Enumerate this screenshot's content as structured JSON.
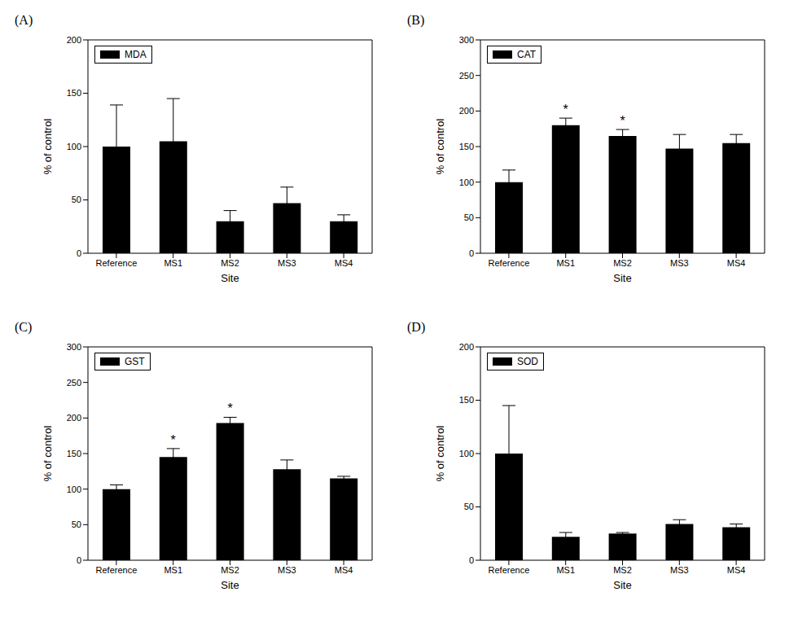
{
  "chart_data": [
    {
      "type": "bar",
      "panel": "(A)",
      "categories": [
        "Reference",
        "MS1",
        "MS2",
        "MS3",
        "MS4"
      ],
      "series": [
        {
          "name": "MDA",
          "color": "#000000",
          "values": [
            100,
            105,
            30,
            47,
            30
          ],
          "errors": [
            39,
            40,
            10,
            15,
            6
          ]
        }
      ],
      "x_label": "Site",
      "y_label": "% of control",
      "ylim": [
        0,
        200
      ],
      "yticks": [
        0,
        50,
        100,
        150,
        200
      ],
      "legend": "upper left"
    },
    {
      "type": "bar",
      "panel": "(B)",
      "categories": [
        "Reference",
        "MS1",
        "MS2",
        "MS3",
        "MS4"
      ],
      "series": [
        {
          "name": "CAT",
          "color": "#000000",
          "values": [
            100,
            180,
            165,
            147,
            155
          ],
          "errors": [
            17,
            10,
            9,
            20,
            12
          ]
        }
      ],
      "annotations": [
        null,
        "*",
        "*",
        null,
        null
      ],
      "x_label": "Site",
      "y_label": "% of control",
      "ylim": [
        0,
        300
      ],
      "yticks": [
        0,
        50,
        100,
        150,
        200,
        250,
        300
      ],
      "legend": "upper left"
    },
    {
      "type": "bar",
      "panel": "(C)",
      "categories": [
        "Reference",
        "MS1",
        "MS2",
        "MS3",
        "MS4"
      ],
      "series": [
        {
          "name": "GST",
          "color": "#000000",
          "values": [
            100,
            145,
            193,
            128,
            115
          ],
          "errors": [
            6,
            12,
            8,
            13,
            3
          ]
        }
      ],
      "annotations": [
        null,
        "*",
        "*",
        null,
        null
      ],
      "x_label": "Site",
      "y_label": "% of control",
      "ylim": [
        0,
        300
      ],
      "yticks": [
        0,
        50,
        100,
        150,
        200,
        250,
        300
      ],
      "legend": "upper left"
    },
    {
      "type": "bar",
      "panel": "(D)",
      "categories": [
        "Reference",
        "MS1",
        "MS2",
        "MS3",
        "MS4"
      ],
      "series": [
        {
          "name": "SOD",
          "color": "#000000",
          "values": [
            100,
            22,
            25,
            34,
            31
          ],
          "errors": [
            45,
            4,
            1,
            4,
            3
          ]
        }
      ],
      "x_label": "Site",
      "y_label": "% of control",
      "ylim": [
        0,
        200
      ],
      "yticks": [
        0,
        50,
        100,
        150,
        200
      ],
      "legend": "upper left"
    }
  ]
}
